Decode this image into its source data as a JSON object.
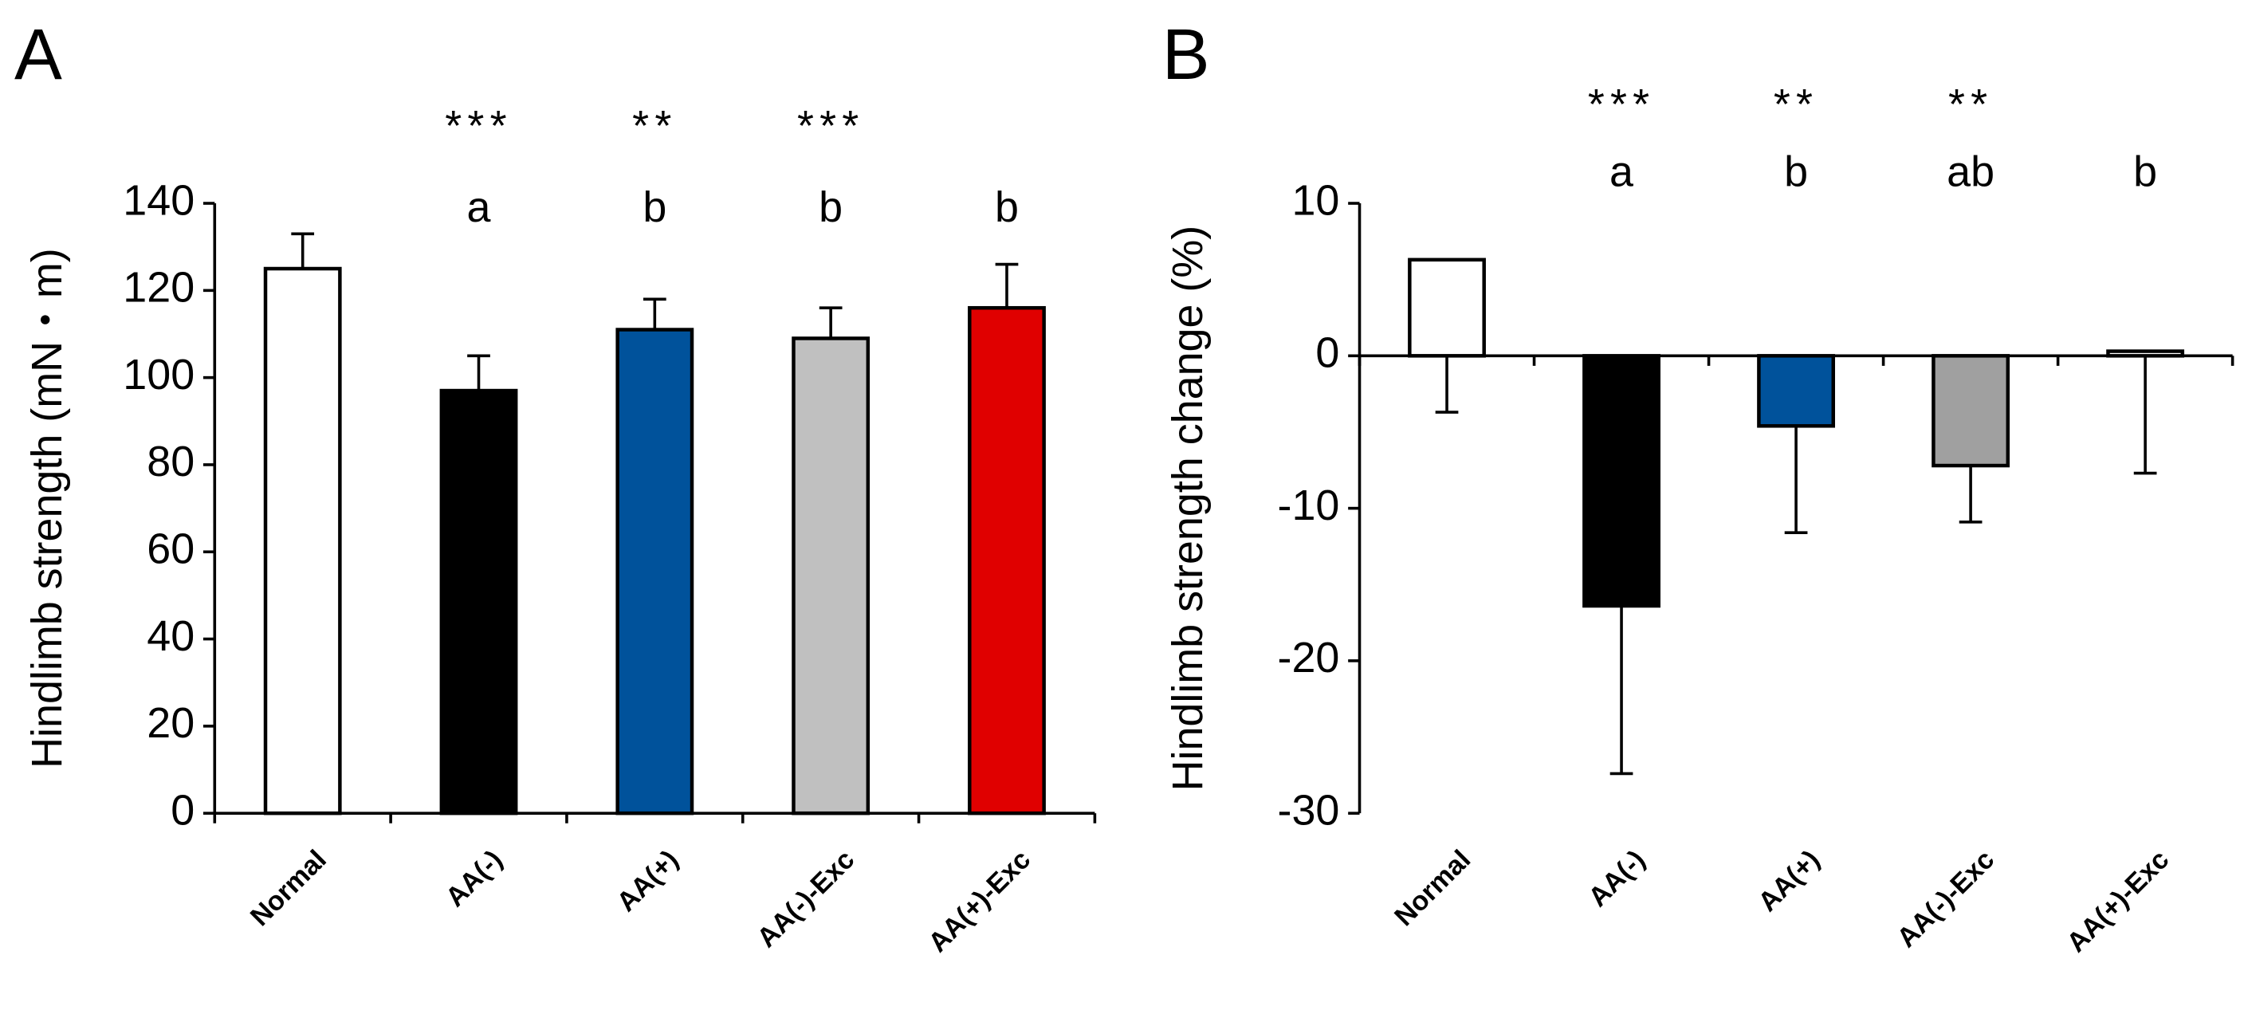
{
  "chart_data": [
    {
      "type": "bar",
      "panel_label": "A",
      "ylabel": "Hindlimb strength (mN・m)",
      "categories": [
        "Normal",
        "AA(-)",
        "AA(+)",
        "AA(-)-Exc",
        "AA(+)-Exc"
      ],
      "values": [
        125,
        97,
        111,
        109,
        116
      ],
      "errors": [
        8,
        8,
        7,
        7,
        10
      ],
      "error_direction": "up",
      "colors": [
        "#ffffff",
        "#000000",
        "#00529b",
        "#c0c0c0",
        "#e00000"
      ],
      "stars": [
        null,
        "***",
        "**",
        "***",
        null
      ],
      "letters": [
        null,
        "a",
        "b",
        "b",
        "b"
      ],
      "ylim": [
        0,
        140
      ],
      "yticks": [
        0,
        20,
        40,
        60,
        80,
        100,
        120,
        140
      ]
    },
    {
      "type": "bar",
      "panel_label": "B",
      "ylabel": "Hindlimb strength change (%)",
      "categories": [
        "Normal",
        "AA(-)",
        "AA(+)",
        "AA(-)-Exc",
        "AA(+)-Exc"
      ],
      "values": [
        6.3,
        -16.4,
        -4.6,
        -7.2,
        0.3
      ],
      "errors": [
        10,
        11,
        7,
        3.7,
        8
      ],
      "error_direction": "down",
      "colors": [
        "#ffffff",
        "#000000",
        "#00529b",
        "#a0a0a0",
        "#ffffff"
      ],
      "stars": [
        null,
        "***",
        "**",
        "**",
        null
      ],
      "letters": [
        null,
        "a",
        "b",
        "ab",
        "b"
      ],
      "ylim": [
        -30,
        10
      ],
      "yticks": [
        -30,
        -20,
        -10,
        0,
        10
      ]
    }
  ]
}
